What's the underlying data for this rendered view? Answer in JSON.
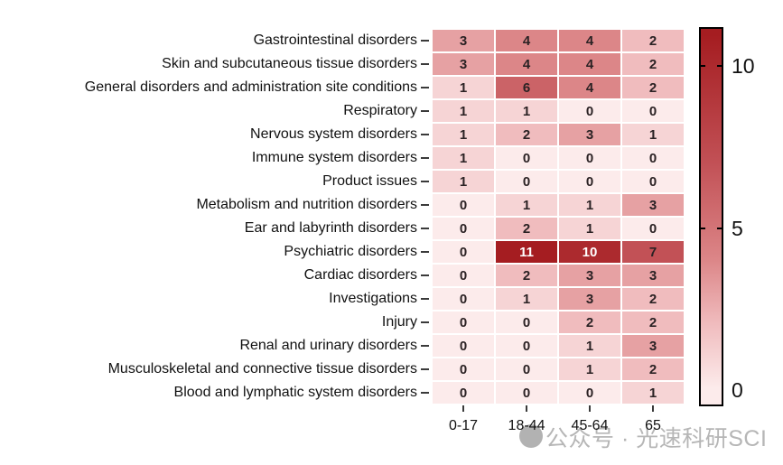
{
  "chart_data": {
    "type": "heatmap",
    "title": "",
    "rows": [
      "Gastrointestinal disorders",
      "Skin and subcutaneous tissue disorders",
      "General disorders and administration site conditions",
      "Respiratory",
      "Nervous system disorders",
      "Immune system disorders",
      "Product issues",
      "Metabolism and nutrition disorders",
      "Ear and labyrinth disorders",
      "Psychiatric disorders",
      "Cardiac disorders",
      "Investigations",
      "Injury",
      "Renal and urinary disorders",
      "Musculoskeletal and connective tissue disorders",
      "Blood and lymphatic system disorders"
    ],
    "columns": [
      "0-17",
      "18-44",
      "45-64",
      "65"
    ],
    "values": [
      [
        3,
        4,
        4,
        2
      ],
      [
        3,
        4,
        4,
        2
      ],
      [
        1,
        6,
        4,
        2
      ],
      [
        1,
        1,
        0,
        0
      ],
      [
        1,
        2,
        3,
        1
      ],
      [
        1,
        0,
        0,
        0
      ],
      [
        1,
        0,
        0,
        0
      ],
      [
        0,
        1,
        1,
        3
      ],
      [
        0,
        2,
        1,
        0
      ],
      [
        0,
        11,
        10,
        7
      ],
      [
        0,
        2,
        3,
        3
      ],
      [
        0,
        1,
        3,
        2
      ],
      [
        0,
        0,
        2,
        2
      ],
      [
        0,
        0,
        1,
        3
      ],
      [
        0,
        0,
        1,
        2
      ],
      [
        0,
        0,
        0,
        1
      ]
    ],
    "value_range": [
      0,
      11
    ],
    "colorbar": {
      "position": "right",
      "ticks": [
        0,
        5,
        10
      ]
    },
    "color_scale": {
      "stops": [
        [
          0,
          "#fcebeb"
        ],
        [
          2,
          "#f0bcbe"
        ],
        [
          4,
          "#dc8688"
        ],
        [
          7,
          "#c25156"
        ],
        [
          11,
          "#a51d21"
        ]
      ],
      "text_dark": "#2b2224",
      "text_light": "#ffffff",
      "text_light_threshold": 9
    },
    "grid": "white-cell-borders",
    "legend_position": "right"
  },
  "watermark": {
    "text": "公众号 · 光速科研SCI",
    "color": "#b6b6b6",
    "logo_icon": "gray-circle-logo"
  }
}
